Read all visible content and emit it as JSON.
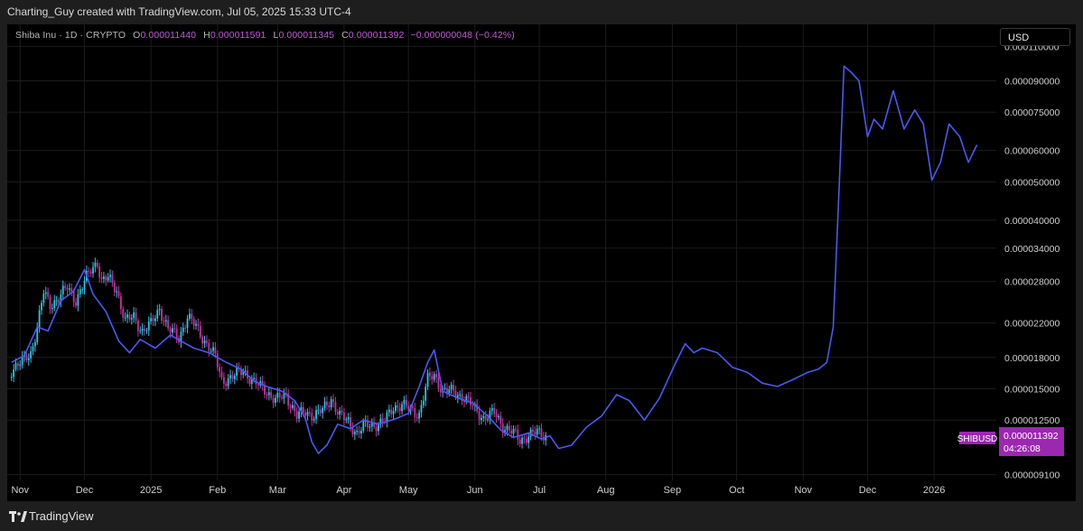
{
  "header": {
    "attribution": "Charting_Guy created with TradingView.com, Jul 05, 2025 15:33 UTC-4"
  },
  "legend": {
    "symbol": "Shiba Inu · 1D · CRYPTO",
    "open_key": "O",
    "open": "0.000011440",
    "high_key": "H",
    "high": "0.000011591",
    "low_key": "L",
    "low": "0.000011345",
    "close_key": "C",
    "close": "0.000011392",
    "change": "−0.000000048 (−0.42%)"
  },
  "currency_button": "USD",
  "price_tag": {
    "symbol": "SHIBUSD",
    "price": "0.000011392",
    "countdown": "04:26:08"
  },
  "footer": {
    "brand": "TradingView"
  },
  "colors": {
    "background": "#000000",
    "grid": "#1c1c1c",
    "bull": "#2ec4e0",
    "bear": "#c2339f",
    "projection": "#4b58f5",
    "tag": "#9c27b0"
  },
  "chart_data": {
    "type": "line",
    "scale": "log",
    "title": "",
    "xlabel": "",
    "ylabel": "",
    "x_ticks": [
      "Nov",
      "Dec",
      "2025",
      "Feb",
      "Mar",
      "Apr",
      "May",
      "Jun",
      "Jul",
      "Aug",
      "Sep",
      "Oct",
      "Nov",
      "Dec",
      "2026"
    ],
    "y_ticks": [
      "0.000110000",
      "0.000090000",
      "0.000075000",
      "0.000060000",
      "0.000050000",
      "0.000040000",
      "0.000034000",
      "0.000028000",
      "0.000022000",
      "0.000018000",
      "0.000015000",
      "0.000012500",
      "0.000009100"
    ],
    "ylim": [
      8.8e-06,
      0.000125
    ],
    "grid": true,
    "series": [
      {
        "kind": "candlestick",
        "points": [
          [
            "2024-10-28",
            1.68e-05
          ],
          [
            "2024-11-02",
            1.75e-05
          ],
          [
            "2024-11-06",
            1.85e-05
          ],
          [
            "2024-11-09",
            2.15e-05
          ],
          [
            "2024-11-12",
            2.62e-05
          ],
          [
            "2024-11-15",
            2.45e-05
          ],
          [
            "2024-11-19",
            2.55e-05
          ],
          [
            "2024-11-23",
            2.7e-05
          ],
          [
            "2024-11-27",
            2.52e-05
          ],
          [
            "2024-11-30",
            2.72e-05
          ],
          [
            "2024-12-04",
            3e-05
          ],
          [
            "2024-12-07",
            3.15e-05
          ],
          [
            "2024-12-09",
            2.8e-05
          ],
          [
            "2024-12-12",
            2.85e-05
          ],
          [
            "2024-12-16",
            2.68e-05
          ],
          [
            "2024-12-20",
            2.22e-05
          ],
          [
            "2024-12-24",
            2.28e-05
          ],
          [
            "2024-12-28",
            2.1e-05
          ],
          [
            "2025-01-01",
            2.18e-05
          ],
          [
            "2025-01-05",
            2.4e-05
          ],
          [
            "2025-01-09",
            2.12e-05
          ],
          [
            "2025-01-14",
            2.02e-05
          ],
          [
            "2025-01-18",
            2.28e-05
          ],
          [
            "2025-01-22",
            2.15e-05
          ],
          [
            "2025-01-27",
            1.95e-05
          ],
          [
            "2025-01-31",
            1.8e-05
          ],
          [
            "2025-02-03",
            1.58e-05
          ],
          [
            "2025-02-08",
            1.6e-05
          ],
          [
            "2025-02-13",
            1.68e-05
          ],
          [
            "2025-02-18",
            1.55e-05
          ],
          [
            "2025-02-23",
            1.5e-05
          ],
          [
            "2025-02-28",
            1.4e-05
          ],
          [
            "2025-03-05",
            1.45e-05
          ],
          [
            "2025-03-10",
            1.28e-05
          ],
          [
            "2025-03-14",
            1.31e-05
          ],
          [
            "2025-03-18",
            1.29e-05
          ],
          [
            "2025-03-22",
            1.32e-05
          ],
          [
            "2025-03-26",
            1.42e-05
          ],
          [
            "2025-03-30",
            1.28e-05
          ],
          [
            "2025-04-03",
            1.24e-05
          ],
          [
            "2025-04-07",
            1.16e-05
          ],
          [
            "2025-04-11",
            1.21e-05
          ],
          [
            "2025-04-15",
            1.22e-05
          ],
          [
            "2025-04-20",
            1.24e-05
          ],
          [
            "2025-04-24",
            1.35e-05
          ],
          [
            "2025-04-28",
            1.37e-05
          ],
          [
            "2025-05-02",
            1.32e-05
          ],
          [
            "2025-05-06",
            1.3e-05
          ],
          [
            "2025-05-10",
            1.58e-05
          ],
          [
            "2025-05-13",
            1.62e-05
          ],
          [
            "2025-05-17",
            1.49e-05
          ],
          [
            "2025-05-22",
            1.47e-05
          ],
          [
            "2025-05-27",
            1.43e-05
          ],
          [
            "2025-06-01",
            1.33e-05
          ],
          [
            "2025-06-05",
            1.27e-05
          ],
          [
            "2025-06-10",
            1.3e-05
          ],
          [
            "2025-06-14",
            1.21e-05
          ],
          [
            "2025-06-18",
            1.17e-05
          ],
          [
            "2025-06-22",
            1.11e-05
          ],
          [
            "2025-06-26",
            1.15e-05
          ],
          [
            "2025-06-30",
            1.16e-05
          ],
          [
            "2025-07-05",
            1.14e-05
          ]
        ]
      },
      {
        "kind": "line",
        "points": [
          [
            "2024-10-28",
            1.75e-05
          ],
          [
            "2024-11-03",
            1.82e-05
          ],
          [
            "2024-11-09",
            2.15e-05
          ],
          [
            "2024-11-14",
            2.1e-05
          ],
          [
            "2024-11-20",
            2.5e-05
          ],
          [
            "2024-11-26",
            2.65e-05
          ],
          [
            "2024-12-01",
            3e-05
          ],
          [
            "2024-12-05",
            2.6e-05
          ],
          [
            "2024-12-11",
            2.35e-05
          ],
          [
            "2024-12-17",
            1.98e-05
          ],
          [
            "2024-12-22",
            1.85e-05
          ],
          [
            "2024-12-27",
            2e-05
          ],
          [
            "2025-01-03",
            1.9e-05
          ],
          [
            "2025-01-10",
            2.05e-05
          ],
          [
            "2025-01-15",
            1.98e-05
          ],
          [
            "2025-01-21",
            1.9e-05
          ],
          [
            "2025-01-28",
            1.85e-05
          ],
          [
            "2025-02-05",
            1.75e-05
          ],
          [
            "2025-02-12",
            1.68e-05
          ],
          [
            "2025-02-18",
            1.57e-05
          ],
          [
            "2025-02-24",
            1.52e-05
          ],
          [
            "2025-03-03",
            1.48e-05
          ],
          [
            "2025-03-09",
            1.4e-05
          ],
          [
            "2025-03-14",
            1.26e-05
          ],
          [
            "2025-03-17",
            1.1e-05
          ],
          [
            "2025-03-20",
            1.03e-05
          ],
          [
            "2025-03-24",
            1.08e-05
          ],
          [
            "2025-03-29",
            1.22e-05
          ],
          [
            "2025-04-04",
            1.19e-05
          ],
          [
            "2025-04-10",
            1.25e-05
          ],
          [
            "2025-04-17",
            1.22e-05
          ],
          [
            "2025-04-25",
            1.26e-05
          ],
          [
            "2025-05-01",
            1.3e-05
          ],
          [
            "2025-05-06",
            1.52e-05
          ],
          [
            "2025-05-10",
            1.75e-05
          ],
          [
            "2025-05-13",
            1.88e-05
          ],
          [
            "2025-05-17",
            1.48e-05
          ],
          [
            "2025-05-24",
            1.42e-05
          ],
          [
            "2025-05-31",
            1.38e-05
          ],
          [
            "2025-06-07",
            1.28e-05
          ],
          [
            "2025-06-13",
            1.18e-05
          ],
          [
            "2025-06-19",
            1.13e-05
          ],
          [
            "2025-06-26",
            1.16e-05
          ],
          [
            "2025-07-02",
            1.12e-05
          ],
          [
            "2025-07-06",
            1.14e-05
          ],
          [
            "2025-07-10",
            1.06e-05
          ],
          [
            "2025-07-16",
            1.08e-05
          ],
          [
            "2025-07-23",
            1.2e-05
          ],
          [
            "2025-07-30",
            1.28e-05
          ],
          [
            "2025-08-06",
            1.45e-05
          ],
          [
            "2025-08-12",
            1.4e-05
          ],
          [
            "2025-08-19",
            1.25e-05
          ],
          [
            "2025-08-26",
            1.42e-05
          ],
          [
            "2025-09-02",
            1.72e-05
          ],
          [
            "2025-09-07",
            1.95e-05
          ],
          [
            "2025-09-11",
            1.85e-05
          ],
          [
            "2025-09-15",
            1.9e-05
          ],
          [
            "2025-09-22",
            1.85e-05
          ],
          [
            "2025-09-29",
            1.7e-05
          ],
          [
            "2025-10-06",
            1.65e-05
          ],
          [
            "2025-10-13",
            1.55e-05
          ],
          [
            "2025-10-20",
            1.52e-05
          ],
          [
            "2025-10-27",
            1.58e-05
          ],
          [
            "2025-11-03",
            1.65e-05
          ],
          [
            "2025-11-08",
            1.68e-05
          ],
          [
            "2025-11-12",
            1.75e-05
          ],
          [
            "2025-11-15",
            2.15e-05
          ],
          [
            "2025-11-18",
            5.2e-05
          ],
          [
            "2025-11-20",
            9.8e-05
          ],
          [
            "2025-11-23",
            9.5e-05
          ],
          [
            "2025-11-27",
            9e-05
          ],
          [
            "2025-12-01",
            6.5e-05
          ],
          [
            "2025-12-04",
            7.2e-05
          ],
          [
            "2025-12-08",
            6.8e-05
          ],
          [
            "2025-12-13",
            8.5e-05
          ],
          [
            "2025-12-18",
            6.8e-05
          ],
          [
            "2025-12-23",
            7.6e-05
          ],
          [
            "2025-12-27",
            7e-05
          ],
          [
            "2025-12-31",
            5.05e-05
          ],
          [
            "2026-01-04",
            5.6e-05
          ],
          [
            "2026-01-08",
            7e-05
          ],
          [
            "2026-01-13",
            6.5e-05
          ],
          [
            "2026-01-17",
            5.6e-05
          ],
          [
            "2026-01-21",
            6.2e-05
          ]
        ]
      }
    ]
  }
}
